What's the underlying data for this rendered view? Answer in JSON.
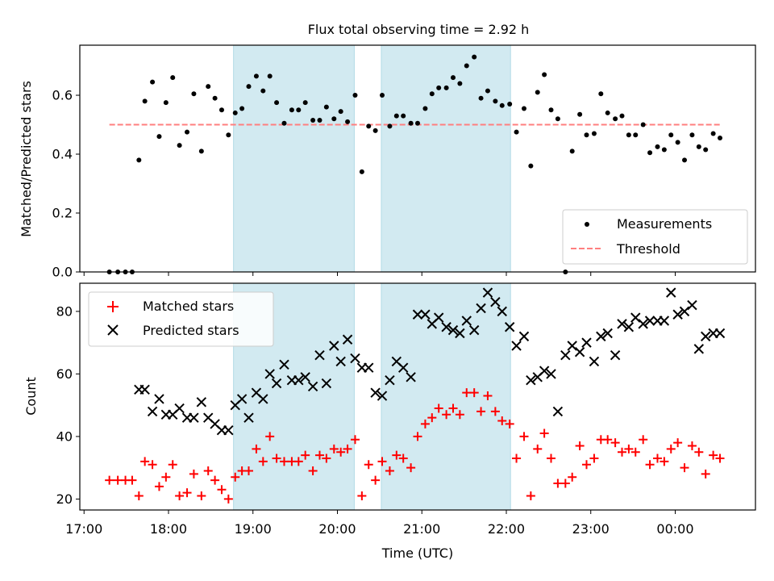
{
  "chart_data": [
    {
      "type": "scatter",
      "title": "Flux total observing time = 2.92 h",
      "xlabel": "",
      "ylabel": "Matched/Predicted stars",
      "ylim": [
        0,
        0.77
      ],
      "yticks": [
        "0.0",
        "0.2",
        "0.4",
        "0.6"
      ],
      "ytick_values": [
        0,
        0.2,
        0.4,
        0.6
      ],
      "xrange_hours": [
        16.95,
        24.95
      ],
      "xtick_values": [
        17,
        18,
        19,
        20,
        21,
        22,
        23,
        24
      ],
      "shaded_intervals": [
        [
          18.77,
          20.2
        ],
        [
          20.52,
          22.05
        ]
      ],
      "shade_color": "#add8e6",
      "legend_position": "lower right",
      "threshold": {
        "name": "Threshold",
        "value": 0.5,
        "x_range": [
          17.3,
          24.55
        ],
        "color": "#ff7f7f"
      },
      "series": [
        {
          "name": "Measurements",
          "marker": "dot",
          "color": "#000000",
          "x": [
            17.3,
            17.4,
            17.49,
            17.57,
            17.65,
            17.72,
            17.81,
            17.89,
            17.97,
            18.05,
            18.13,
            18.22,
            18.3,
            18.39,
            18.47,
            18.55,
            18.63,
            18.71,
            18.79,
            18.87,
            18.95,
            19.04,
            19.12,
            19.2,
            19.28,
            19.37,
            19.46,
            19.54,
            19.62,
            19.71,
            19.79,
            19.87,
            19.96,
            20.04,
            20.12,
            20.21,
            20.29,
            20.37,
            20.45,
            20.53,
            20.62,
            20.7,
            20.78,
            20.87,
            20.95,
            21.04,
            21.12,
            21.2,
            21.29,
            21.37,
            21.45,
            21.53,
            21.62,
            21.7,
            21.78,
            21.87,
            21.95,
            22.04,
            22.12,
            22.21,
            22.29,
            22.37,
            22.45,
            22.53,
            22.61,
            22.7,
            22.78,
            22.87,
            22.95,
            23.04,
            23.12,
            23.2,
            23.29,
            23.37,
            23.45,
            23.53,
            23.62,
            23.7,
            23.79,
            23.87,
            23.95,
            24.03,
            24.11,
            24.2,
            24.28,
            24.36,
            24.45,
            24.53
          ],
          "y": [
            0,
            0,
            0,
            0,
            0.38,
            0.58,
            0.645,
            0.46,
            0.575,
            0.66,
            0.43,
            0.475,
            0.605,
            0.41,
            0.63,
            0.59,
            0.55,
            0.465,
            0.54,
            0.555,
            0.63,
            0.665,
            0.615,
            0.665,
            0.575,
            0.505,
            0.55,
            0.55,
            0.575,
            0.515,
            0.515,
            0.56,
            0.52,
            0.545,
            0.51,
            0.6,
            0.34,
            0.495,
            0.48,
            0.6,
            0.495,
            0.53,
            0.53,
            0.505,
            0.505,
            0.555,
            0.605,
            0.625,
            0.625,
            0.66,
            0.64,
            0.7,
            0.73,
            0.59,
            0.615,
            0.58,
            0.565,
            0.57,
            0.475,
            0.555,
            0.36,
            0.61,
            0.67,
            0.55,
            0.52,
            0,
            0.41,
            0.535,
            0.465,
            0.47,
            0.605,
            0.54,
            0.52,
            0.53,
            0.465,
            0.465,
            0.5,
            0.405,
            0.425,
            0.415,
            0.465,
            0.44,
            0.38,
            0.465,
            0.425,
            0.415,
            0.47,
            0.455
          ]
        }
      ]
    },
    {
      "type": "scatter",
      "title": "",
      "xlabel": "Time (UTC)",
      "ylabel": "Count",
      "ylim": [
        16.5,
        89
      ],
      "yticks": [
        "20",
        "40",
        "60",
        "80"
      ],
      "ytick_values": [
        20,
        40,
        60,
        80
      ],
      "xrange_hours": [
        16.95,
        24.95
      ],
      "xtick_values": [
        17,
        18,
        19,
        20,
        21,
        22,
        23,
        24
      ],
      "xticks": [
        "17:00",
        "18:00",
        "19:00",
        "20:00",
        "21:00",
        "22:00",
        "23:00",
        "00:00"
      ],
      "shaded_intervals": [
        [
          18.77,
          20.2
        ],
        [
          20.52,
          22.05
        ]
      ],
      "shade_color": "#add8e6",
      "legend_position": "upper left",
      "series": [
        {
          "name": "Matched stars",
          "marker": "plus",
          "color": "#ff0000",
          "x": [
            17.3,
            17.4,
            17.49,
            17.57,
            17.65,
            17.72,
            17.81,
            17.89,
            17.97,
            18.05,
            18.13,
            18.22,
            18.3,
            18.39,
            18.47,
            18.55,
            18.63,
            18.71,
            18.79,
            18.87,
            18.95,
            19.04,
            19.12,
            19.2,
            19.28,
            19.37,
            19.46,
            19.54,
            19.62,
            19.71,
            19.79,
            19.87,
            19.96,
            20.04,
            20.12,
            20.21,
            20.29,
            20.37,
            20.45,
            20.53,
            20.62,
            20.7,
            20.78,
            20.87,
            20.95,
            21.04,
            21.12,
            21.2,
            21.29,
            21.37,
            21.45,
            21.53,
            21.62,
            21.7,
            21.78,
            21.87,
            21.95,
            22.04,
            22.12,
            22.21,
            22.29,
            22.37,
            22.45,
            22.53,
            22.61,
            22.7,
            22.78,
            22.87,
            22.95,
            23.04,
            23.12,
            23.2,
            23.29,
            23.37,
            23.45,
            23.53,
            23.62,
            23.7,
            23.79,
            23.87,
            23.95,
            24.03,
            24.11,
            24.2,
            24.28,
            24.36,
            24.45,
            24.53
          ],
          "y": [
            26,
            26,
            26,
            26,
            21,
            32,
            31,
            24,
            27,
            31,
            21,
            22,
            28,
            21,
            29,
            26,
            23,
            20,
            27,
            29,
            29,
            36,
            32,
            40,
            33,
            32,
            32,
            32,
            34,
            29,
            34,
            33,
            36,
            35,
            36,
            39,
            21,
            31,
            26,
            32,
            29,
            34,
            33,
            30,
            40,
            44,
            46,
            49,
            47,
            49,
            47,
            54,
            54,
            48,
            53,
            48,
            45,
            44,
            33,
            40,
            21,
            36,
            41,
            33,
            25,
            25,
            27,
            37,
            31,
            33,
            39,
            39,
            38,
            35,
            36,
            35,
            39,
            31,
            33,
            32,
            36,
            38,
            30,
            37,
            35,
            28,
            34,
            33
          ]
        },
        {
          "name": "Predicted stars",
          "marker": "x",
          "color": "#000000",
          "x": [
            17.65,
            17.72,
            17.81,
            17.89,
            17.97,
            18.05,
            18.13,
            18.22,
            18.3,
            18.39,
            18.47,
            18.55,
            18.63,
            18.71,
            18.79,
            18.87,
            18.95,
            19.04,
            19.12,
            19.2,
            19.28,
            19.37,
            19.46,
            19.54,
            19.62,
            19.71,
            19.79,
            19.87,
            19.96,
            20.04,
            20.12,
            20.21,
            20.29,
            20.37,
            20.45,
            20.53,
            20.62,
            20.7,
            20.78,
            20.87,
            20.95,
            21.04,
            21.12,
            21.2,
            21.29,
            21.37,
            21.45,
            21.53,
            21.62,
            21.7,
            21.78,
            21.87,
            21.95,
            22.04,
            22.12,
            22.21,
            22.29,
            22.37,
            22.45,
            22.53,
            22.61,
            22.7,
            22.78,
            22.87,
            22.95,
            23.04,
            23.12,
            23.2,
            23.29,
            23.37,
            23.45,
            23.53,
            23.62,
            23.7,
            23.79,
            23.87,
            23.95,
            24.03,
            24.11,
            24.2,
            24.28,
            24.36,
            24.45,
            24.53
          ],
          "y": [
            55,
            55,
            48,
            52,
            47,
            47,
            49,
            46,
            46,
            51,
            46,
            44,
            42,
            42,
            50,
            52,
            46,
            54,
            52,
            60,
            57,
            63,
            58,
            58,
            59,
            56,
            66,
            57,
            69,
            64,
            71,
            65,
            62,
            62,
            54,
            53,
            58,
            64,
            62,
            59,
            79,
            79,
            76,
            78,
            75,
            74,
            73,
            77,
            74,
            81,
            86,
            83,
            80,
            75,
            69,
            72,
            58,
            59,
            61,
            60,
            48,
            66,
            69,
            67,
            70,
            64,
            72,
            73,
            66,
            76,
            75,
            78,
            76,
            77,
            77,
            77,
            86,
            79,
            80,
            82,
            68,
            72,
            73,
            73
          ]
        }
      ]
    }
  ]
}
